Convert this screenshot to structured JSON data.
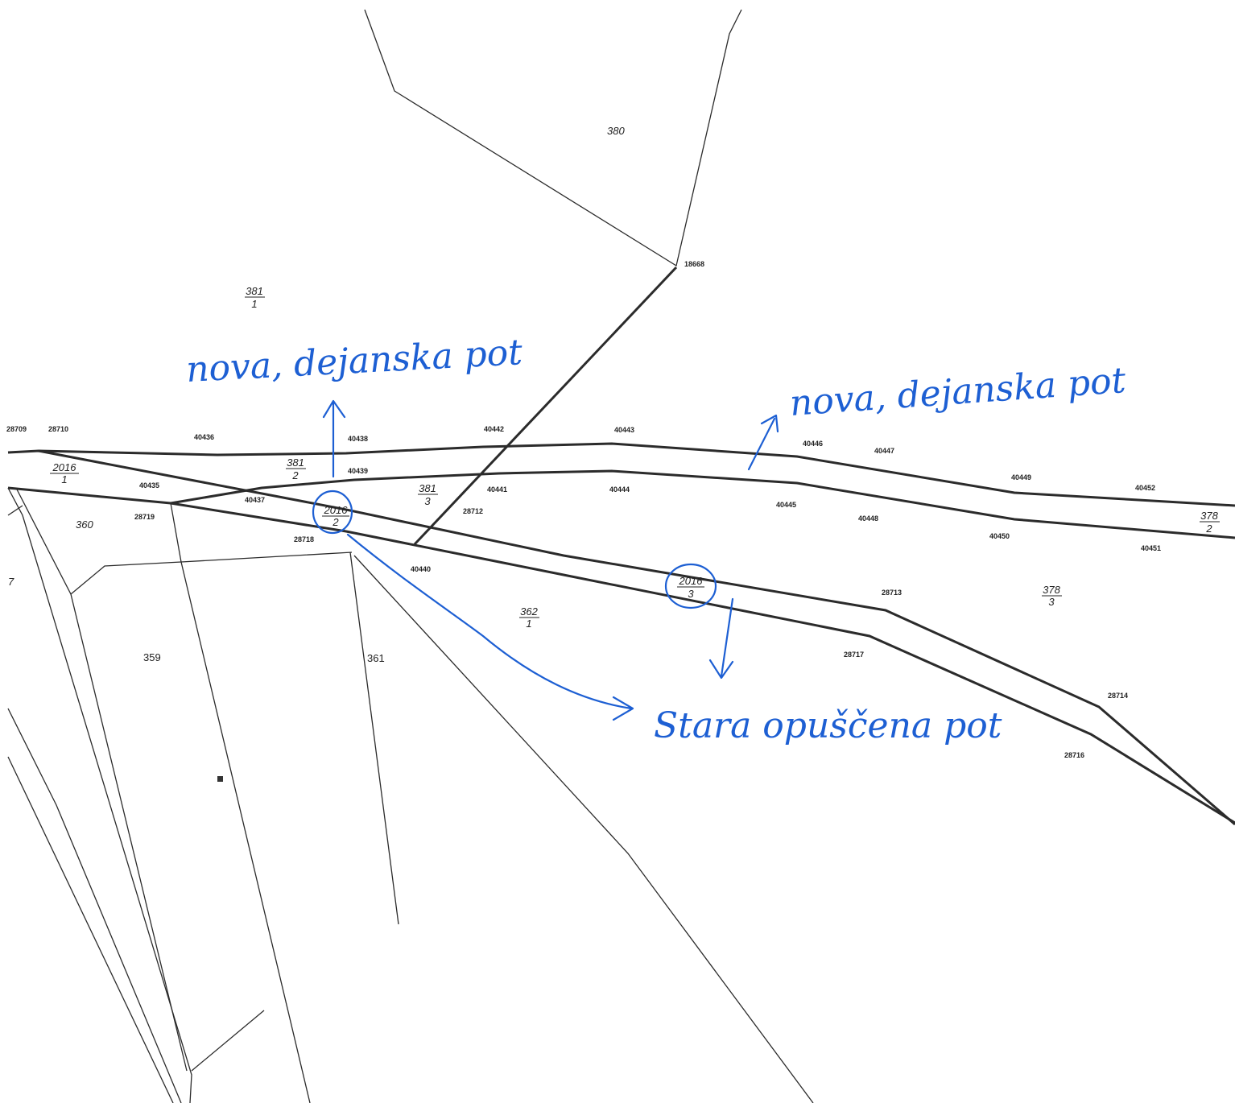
{
  "colors": {
    "background": "#ffffff",
    "lines": "#2b2b2b",
    "annotation": "#1d5fd3"
  },
  "parcels": {
    "p380": {
      "text": "380"
    },
    "p381_1": {
      "num": "381",
      "den": "1"
    },
    "p381_2": {
      "num": "381",
      "den": "2"
    },
    "p381_3": {
      "num": "381",
      "den": "3"
    },
    "p2016_1": {
      "num": "2016",
      "den": "1"
    },
    "p2016_2": {
      "num": "2016",
      "den": "2"
    },
    "p2016_3": {
      "num": "2016",
      "den": "3"
    },
    "p360": {
      "text": "360"
    },
    "p359": {
      "text": "359"
    },
    "p361": {
      "text": "361"
    },
    "p362_1": {
      "num": "362",
      "den": "1"
    },
    "p378_2": {
      "num": "378",
      "den": "2"
    },
    "p378_3": {
      "num": "378",
      "den": "3"
    },
    "p7": {
      "text": "7"
    }
  },
  "points": {
    "pt28709": "28709",
    "pt28710": "28710",
    "pt40436": "40436",
    "pt40438": "40438",
    "pt40439": "40439",
    "pt40442": "40442",
    "pt40443": "40443",
    "pt40446": "40446",
    "pt40447": "40447",
    "pt40449": "40449",
    "pt40452": "40452",
    "pt40435": "40435",
    "pt40437": "40437",
    "pt40441": "40441",
    "pt40444": "40444",
    "pt40445": "40445",
    "pt40448": "40448",
    "pt40450": "40450",
    "pt40451": "40451",
    "pt28719": "28719",
    "pt28718": "28718",
    "pt28712": "28712",
    "pt40440": "40440",
    "pt28713": "28713",
    "pt28717": "28717",
    "pt28714": "28714",
    "pt28716": "28716",
    "pt18668": "18668"
  },
  "annotations": {
    "new_path_left": "nova, dejanska pot",
    "new_path_right": "nova, dejanska pot",
    "old_path": "Stara opuščena pot"
  }
}
